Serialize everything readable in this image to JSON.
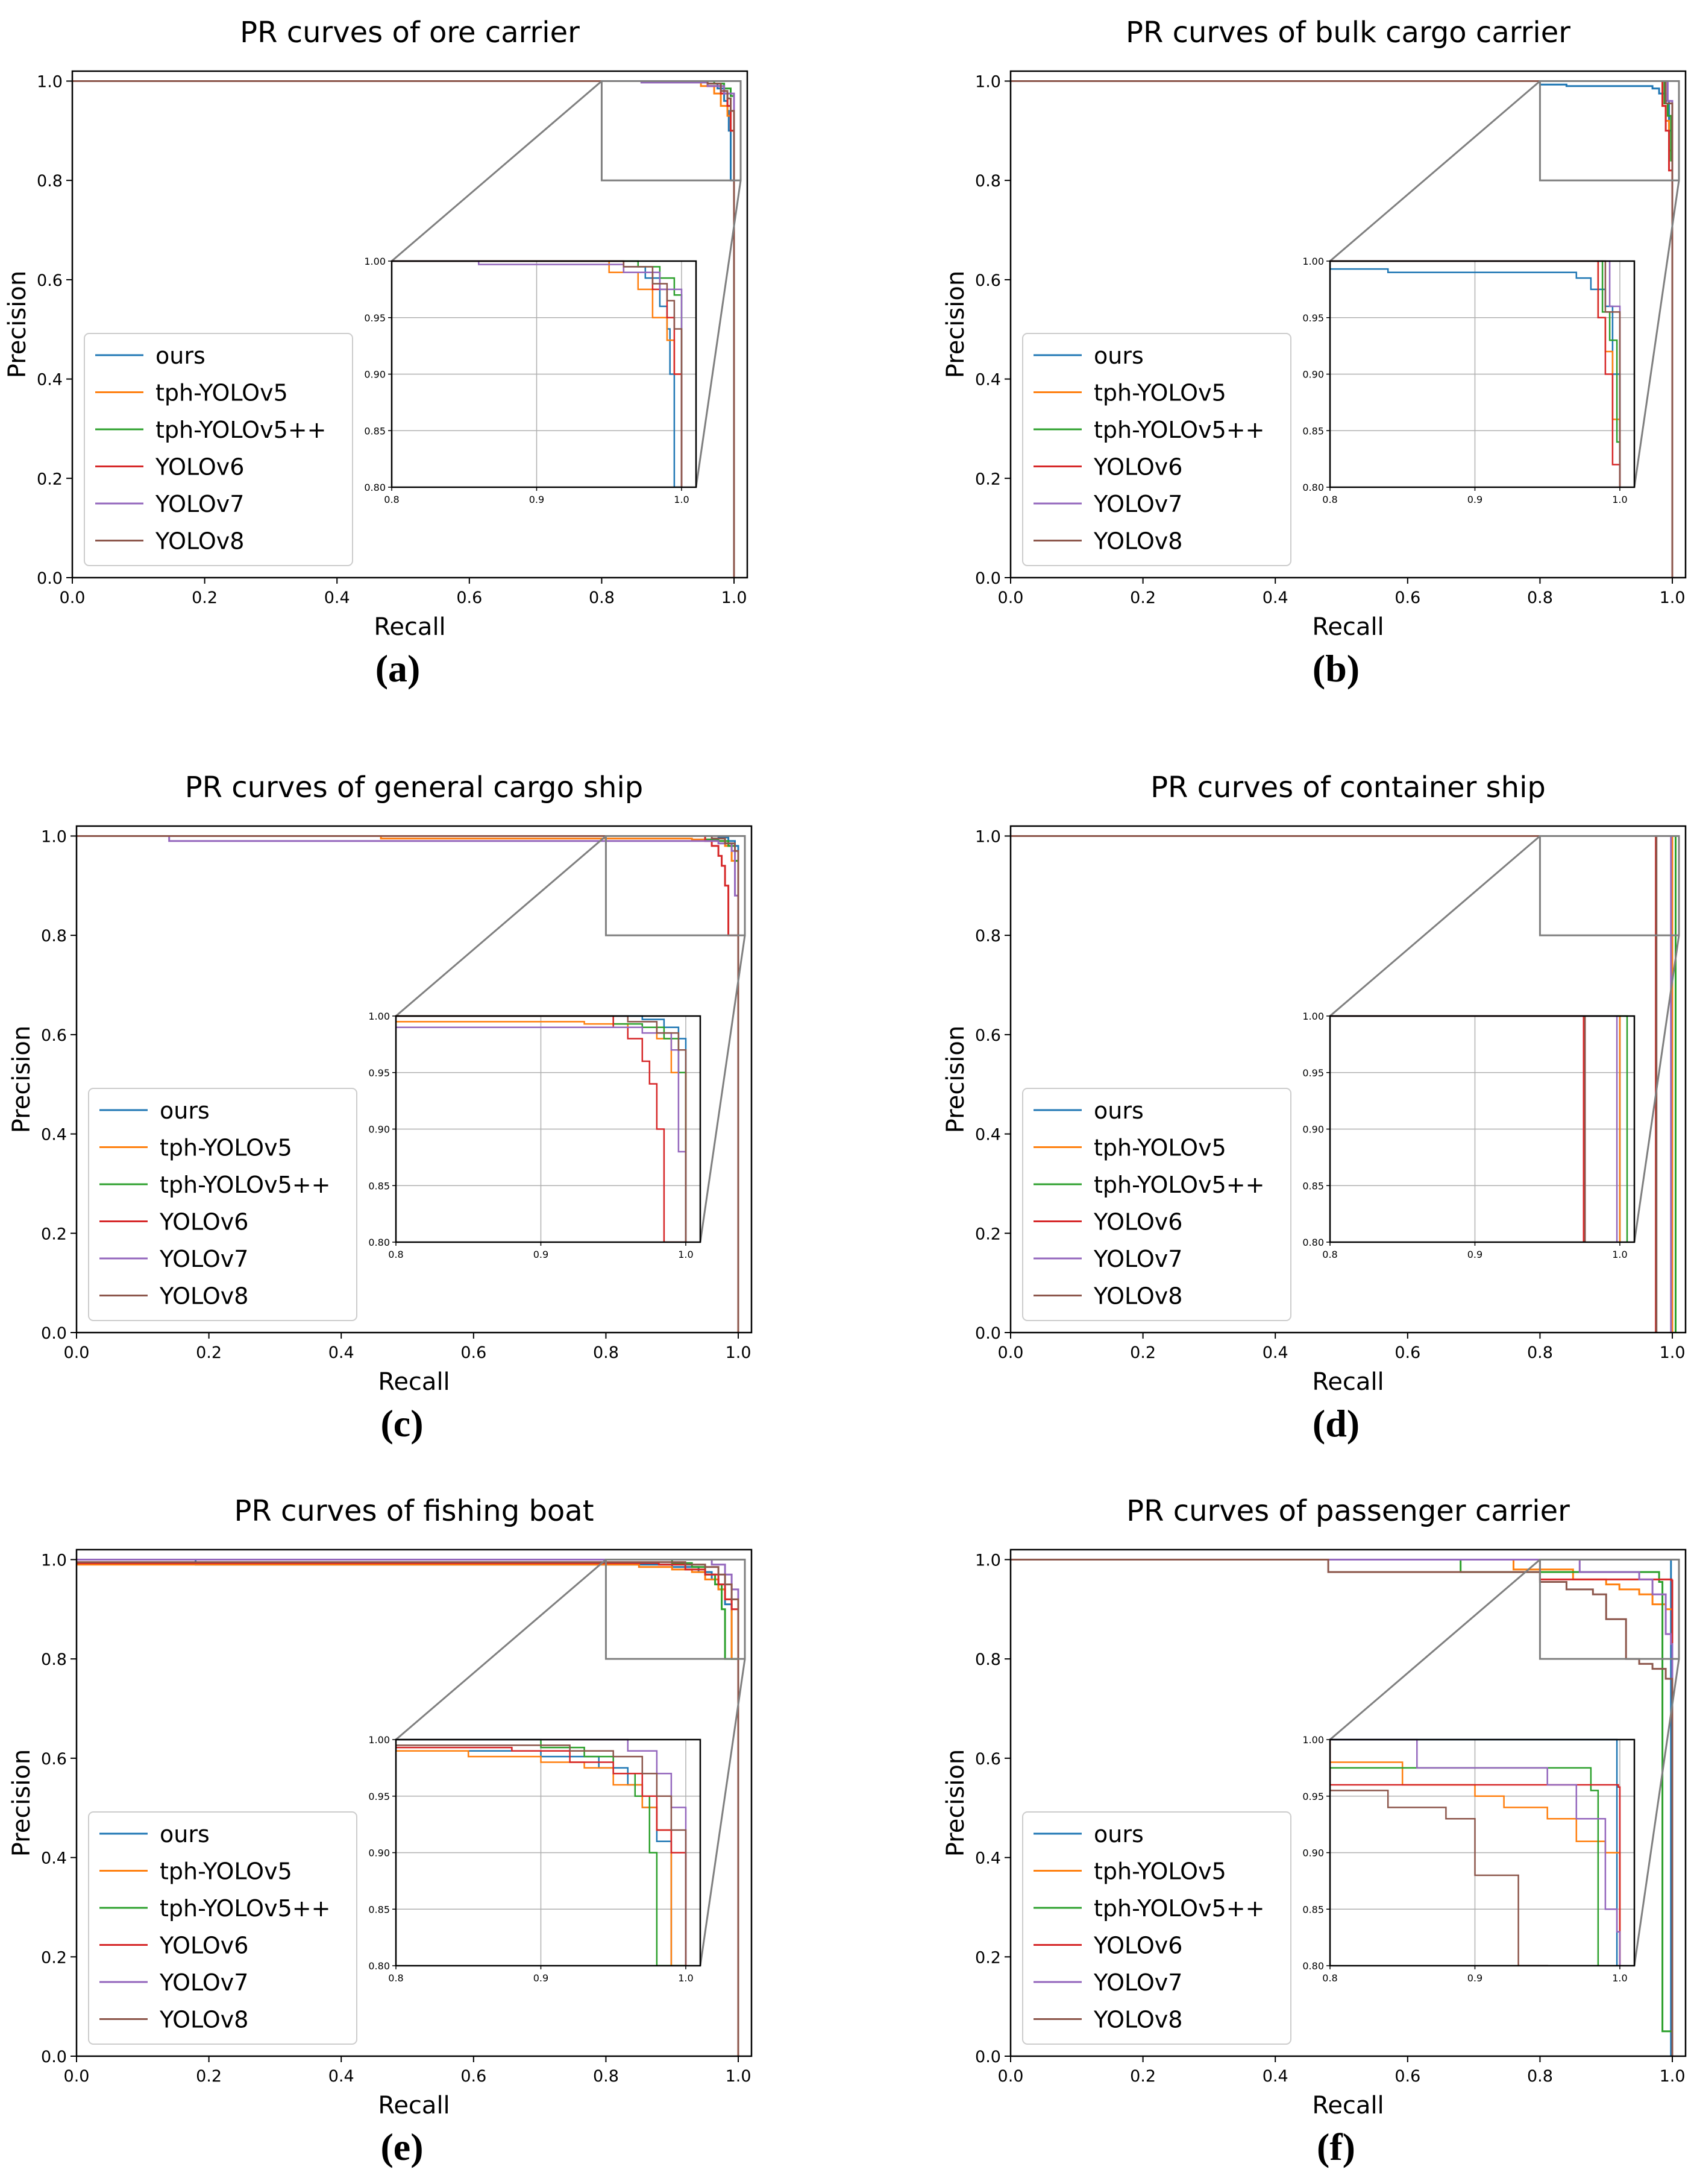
{
  "series_names": [
    "ours",
    "tph-YOLOv5",
    "tph-YOLOv5++",
    "YOLOv6",
    "YOLOv7",
    "YOLOv8"
  ],
  "series_colors": [
    "#1f77b4",
    "#ff7f0e",
    "#2ca02c",
    "#d62728",
    "#9467bd",
    "#8c564b"
  ],
  "main_xticks": [
    "0.0",
    "0.2",
    "0.4",
    "0.6",
    "0.8",
    "1.0"
  ],
  "main_yticks": [
    "0.0",
    "0.2",
    "0.4",
    "0.6",
    "0.8",
    "1.0"
  ],
  "inset_xticks": [
    "0.8",
    "0.9",
    "1.0"
  ],
  "inset_yticks": [
    "0.80",
    "0.85",
    "0.90",
    "0.95",
    "1.00"
  ],
  "chart_data": [
    {
      "type": "line",
      "panel": "(a)",
      "title": "PR curves of ore carrier",
      "xlabel": "Recall",
      "ylabel": "Precision",
      "xlim": [
        0,
        1.02
      ],
      "ylim": [
        0,
        1.02
      ],
      "legend": "left",
      "inset": {
        "xlim": [
          0.8,
          1.01
        ],
        "ylim": [
          0.8,
          1.0
        ]
      },
      "series": [
        {
          "name": "ours",
          "x": [
            0,
            0.93,
            0.96,
            0.975,
            0.985,
            0.99,
            0.992,
            0.995,
            1.0
          ],
          "y": [
            1.0,
            1.0,
            0.995,
            0.985,
            0.96,
            0.94,
            0.9,
            0.8,
            0.0
          ]
        },
        {
          "name": "tph-YOLOv5",
          "x": [
            0,
            0.93,
            0.95,
            0.97,
            0.98,
            0.99,
            0.995,
            1.0
          ],
          "y": [
            1.0,
            1.0,
            0.99,
            0.975,
            0.95,
            0.93,
            0.9,
            0.0
          ]
        },
        {
          "name": "tph-YOLOv5++",
          "x": [
            0,
            0.95,
            0.97,
            0.985,
            0.995,
            1.0,
            1.0
          ],
          "y": [
            1.0,
            1.0,
            0.995,
            0.985,
            0.97,
            0.95,
            0.0
          ]
        },
        {
          "name": "YOLOv6",
          "x": [
            0,
            0.94,
            0.96,
            0.98,
            0.99,
            0.995,
            1.0
          ],
          "y": [
            1.0,
            1.0,
            0.99,
            0.975,
            0.95,
            0.9,
            0.0
          ]
        },
        {
          "name": "YOLOv7",
          "x": [
            0,
            0.85,
            0.86,
            0.94,
            0.96,
            0.985,
            1.0,
            1.0
          ],
          "y": [
            1.0,
            1.0,
            0.997,
            0.997,
            0.99,
            0.975,
            0.95,
            0.0
          ]
        },
        {
          "name": "YOLOv8",
          "x": [
            0,
            0.94,
            0.96,
            0.98,
            0.99,
            0.995,
            1.0
          ],
          "y": [
            1.0,
            1.0,
            0.995,
            0.98,
            0.965,
            0.94,
            0.0
          ]
        }
      ]
    },
    {
      "type": "line",
      "panel": "(b)",
      "title": "PR curves of bulk cargo carrier",
      "xlabel": "Recall",
      "ylabel": "Precision",
      "xlim": [
        0,
        1.02
      ],
      "ylim": [
        0,
        1.02
      ],
      "legend": "left",
      "inset": {
        "xlim": [
          0.8,
          1.01
        ],
        "ylim": [
          0.8,
          1.0
        ]
      },
      "series": [
        {
          "name": "ours",
          "x": [
            0,
            0.75,
            0.8,
            0.84,
            0.88,
            0.95,
            0.97,
            0.98,
            0.99,
            0.995,
            1.0
          ],
          "y": [
            1.0,
            1.0,
            0.993,
            0.99,
            0.99,
            0.99,
            0.985,
            0.975,
            0.96,
            0.9,
            0.0
          ]
        },
        {
          "name": "tph-YOLOv5",
          "x": [
            0,
            0.98,
            0.985,
            0.99,
            0.995,
            1.0
          ],
          "y": [
            1.0,
            1.0,
            0.95,
            0.92,
            0.86,
            0.0
          ]
        },
        {
          "name": "tph-YOLOv5++",
          "x": [
            0,
            0.982,
            0.988,
            0.993,
            0.998,
            1.0
          ],
          "y": [
            1.0,
            1.0,
            0.955,
            0.93,
            0.84,
            0.0
          ]
        },
        {
          "name": "YOLOv6",
          "x": [
            0,
            0.978,
            0.985,
            0.99,
            0.995,
            1.0
          ],
          "y": [
            1.0,
            1.0,
            0.95,
            0.9,
            0.82,
            0.0
          ]
        },
        {
          "name": "YOLOv7",
          "x": [
            0,
            0.985,
            0.993,
            1.0
          ],
          "y": [
            1.0,
            1.0,
            0.96,
            0.0
          ]
        },
        {
          "name": "YOLOv8",
          "x": [
            0,
            0.985,
            0.99,
            1.0
          ],
          "y": [
            1.0,
            1.0,
            0.955,
            0.0
          ]
        }
      ]
    },
    {
      "type": "line",
      "panel": "(c)",
      "title": "PR curves of general cargo ship",
      "xlabel": "Recall",
      "ylabel": "Precision",
      "xlim": [
        0,
        1.02
      ],
      "ylim": [
        0,
        1.02
      ],
      "legend": "left",
      "inset": {
        "xlim": [
          0.8,
          1.01
        ],
        "ylim": [
          0.8,
          1.0
        ]
      },
      "series": [
        {
          "name": "ours",
          "x": [
            0,
            0.94,
            0.97,
            0.985,
            0.995,
            1.0,
            1.0
          ],
          "y": [
            1.0,
            1.0,
            0.997,
            0.99,
            0.98,
            0.96,
            0.0
          ]
        },
        {
          "name": "tph-YOLOv5",
          "x": [
            0,
            0.45,
            0.46,
            0.93,
            0.96,
            0.98,
            0.99,
            1.0
          ],
          "y": [
            1.0,
            1.0,
            0.995,
            0.993,
            0.99,
            0.98,
            0.95,
            0.0
          ]
        },
        {
          "name": "tph-YOLOv5++",
          "x": [
            0,
            0.92,
            0.95,
            0.97,
            0.985,
            0.995,
            1.0
          ],
          "y": [
            1.0,
            1.0,
            0.993,
            0.99,
            0.98,
            0.95,
            0.0
          ]
        },
        {
          "name": "YOLOv6",
          "x": [
            0,
            0.93,
            0.95,
            0.96,
            0.97,
            0.975,
            0.98,
            0.985,
            1.0
          ],
          "y": [
            1.0,
            1.0,
            0.99,
            0.98,
            0.96,
            0.94,
            0.9,
            0.8,
            0.0
          ]
        },
        {
          "name": "YOLOv7",
          "x": [
            0,
            0.13,
            0.14,
            0.95,
            0.97,
            0.99,
            0.995,
            1.0
          ],
          "y": [
            1.0,
            1.0,
            0.99,
            0.99,
            0.985,
            0.97,
            0.88,
            0.0
          ]
        },
        {
          "name": "YOLOv8",
          "x": [
            0,
            0.93,
            0.96,
            0.98,
            0.995,
            1.0
          ],
          "y": [
            1.0,
            1.0,
            0.995,
            0.985,
            0.97,
            0.0
          ]
        }
      ]
    },
    {
      "type": "line",
      "panel": "(d)",
      "title": "PR curves of container ship",
      "xlabel": "Recall",
      "ylabel": "Precision",
      "xlim": [
        0,
        1.02
      ],
      "ylim": [
        0,
        1.02
      ],
      "legend": "left",
      "inset": {
        "xlim": [
          0.8,
          1.01
        ],
        "ylim": [
          0.8,
          1.0
        ]
      },
      "series": [
        {
          "name": "ours",
          "x": [
            0,
            1.0,
            1.0
          ],
          "y": [
            1.0,
            1.0,
            0.0
          ]
        },
        {
          "name": "tph-YOLOv5",
          "x": [
            0,
            1.0,
            1.0
          ],
          "y": [
            1.0,
            1.0,
            0.0
          ]
        },
        {
          "name": "tph-YOLOv5++",
          "x": [
            0,
            1.005,
            1.005
          ],
          "y": [
            1.0,
            1.0,
            0.0
          ]
        },
        {
          "name": "YOLOv6",
          "x": [
            0,
            0.975,
            0.975
          ],
          "y": [
            1.0,
            1.0,
            0.0
          ]
        },
        {
          "name": "YOLOv7",
          "x": [
            0,
            0.998,
            0.998
          ],
          "y": [
            1.0,
            1.0,
            0.0
          ]
        },
        {
          "name": "YOLOv8",
          "x": [
            0,
            0.976,
            0.976
          ],
          "y": [
            1.0,
            1.0,
            0.0
          ]
        }
      ]
    },
    {
      "type": "line",
      "panel": "(e)",
      "title": "PR curves of fishing boat",
      "xlabel": "Recall",
      "ylabel": "Precision",
      "xlim": [
        0,
        1.02
      ],
      "ylim": [
        0,
        1.02
      ],
      "legend": "left",
      "inset": {
        "xlim": [
          0.8,
          1.01
        ],
        "ylim": [
          0.8,
          1.0
        ]
      },
      "series": [
        {
          "name": "ours",
          "x": [
            0,
            0.18,
            0.85,
            0.9,
            0.94,
            0.96,
            0.97,
            0.98,
            0.99,
            1.0
          ],
          "y": [
            1.0,
            0.99,
            0.99,
            0.985,
            0.975,
            0.96,
            0.94,
            0.91,
            0.8,
            0.0
          ]
        },
        {
          "name": "tph-YOLOv5",
          "x": [
            0,
            0.85,
            0.9,
            0.93,
            0.95,
            0.97,
            0.98,
            0.99,
            1.0
          ],
          "y": [
            0.99,
            0.985,
            0.98,
            0.975,
            0.96,
            0.94,
            0.92,
            0.8,
            0.0
          ]
        },
        {
          "name": "tph-YOLOv5++",
          "x": [
            0,
            0.9,
            0.93,
            0.95,
            0.965,
            0.975,
            0.98,
            1.0
          ],
          "y": [
            1.0,
            0.993,
            0.985,
            0.97,
            0.95,
            0.9,
            0.8,
            0.0
          ]
        },
        {
          "name": "YOLOv6",
          "x": [
            0,
            0.88,
            0.92,
            0.95,
            0.97,
            0.98,
            0.99,
            1.0
          ],
          "y": [
            0.993,
            0.99,
            0.98,
            0.97,
            0.95,
            0.92,
            0.9,
            0.0
          ]
        },
        {
          "name": "YOLOv7",
          "x": [
            0,
            0.93,
            0.96,
            0.98,
            0.99,
            1.0,
            1.0
          ],
          "y": [
            1.0,
            1.0,
            0.99,
            0.97,
            0.94,
            0.9,
            0.0
          ]
        },
        {
          "name": "YOLOv8",
          "x": [
            0,
            0.92,
            0.95,
            0.97,
            0.98,
            0.99,
            1.0
          ],
          "y": [
            0.995,
            0.99,
            0.985,
            0.97,
            0.95,
            0.92,
            0.0
          ]
        }
      ]
    },
    {
      "type": "line",
      "panel": "(f)",
      "title": "PR curves of passenger carrier",
      "xlabel": "Recall",
      "ylabel": "Precision",
      "xlim": [
        0,
        1.02
      ],
      "ylim": [
        0,
        1.02
      ],
      "legend": "left",
      "inset": {
        "xlim": [
          0.8,
          1.01
        ],
        "ylim": [
          0.8,
          1.0
        ]
      },
      "series": [
        {
          "name": "ours",
          "x": [
            0,
            0.998,
            0.998
          ],
          "y": [
            1.0,
            1.0,
            0.0
          ]
        },
        {
          "name": "tph-YOLOv5",
          "x": [
            0,
            0.75,
            0.76,
            0.85,
            0.9,
            0.92,
            0.95,
            0.97,
            0.99,
            1.0
          ],
          "y": [
            1.0,
            1.0,
            0.98,
            0.96,
            0.95,
            0.94,
            0.93,
            0.91,
            0.9,
            0.0
          ]
        },
        {
          "name": "tph-YOLOv5++",
          "x": [
            0,
            0.67,
            0.68,
            0.98,
            0.985,
            1.0
          ],
          "y": [
            1.0,
            1.0,
            0.975,
            0.955,
            0.05,
            0.0
          ]
        },
        {
          "name": "YOLOv6",
          "x": [
            0,
            0.78,
            0.8,
            0.999,
            1.0
          ],
          "y": [
            1.0,
            1.0,
            0.96,
            0.958,
            0.0
          ]
        },
        {
          "name": "YOLOv7",
          "x": [
            0,
            0.86,
            0.86,
            0.95,
            0.97,
            0.99,
            0.998,
            1.0
          ],
          "y": [
            1.0,
            1.0,
            0.975,
            0.96,
            0.93,
            0.85,
            0.83,
            0.0
          ]
        },
        {
          "name": "YOLOv8",
          "x": [
            0,
            0.48,
            0.53,
            0.8,
            0.84,
            0.88,
            0.9,
            0.93,
            0.95,
            0.97,
            0.99,
            1.0
          ],
          "y": [
            1.0,
            0.975,
            0.975,
            0.955,
            0.94,
            0.93,
            0.88,
            0.8,
            0.79,
            0.78,
            0.76,
            0.0
          ]
        }
      ]
    }
  ]
}
